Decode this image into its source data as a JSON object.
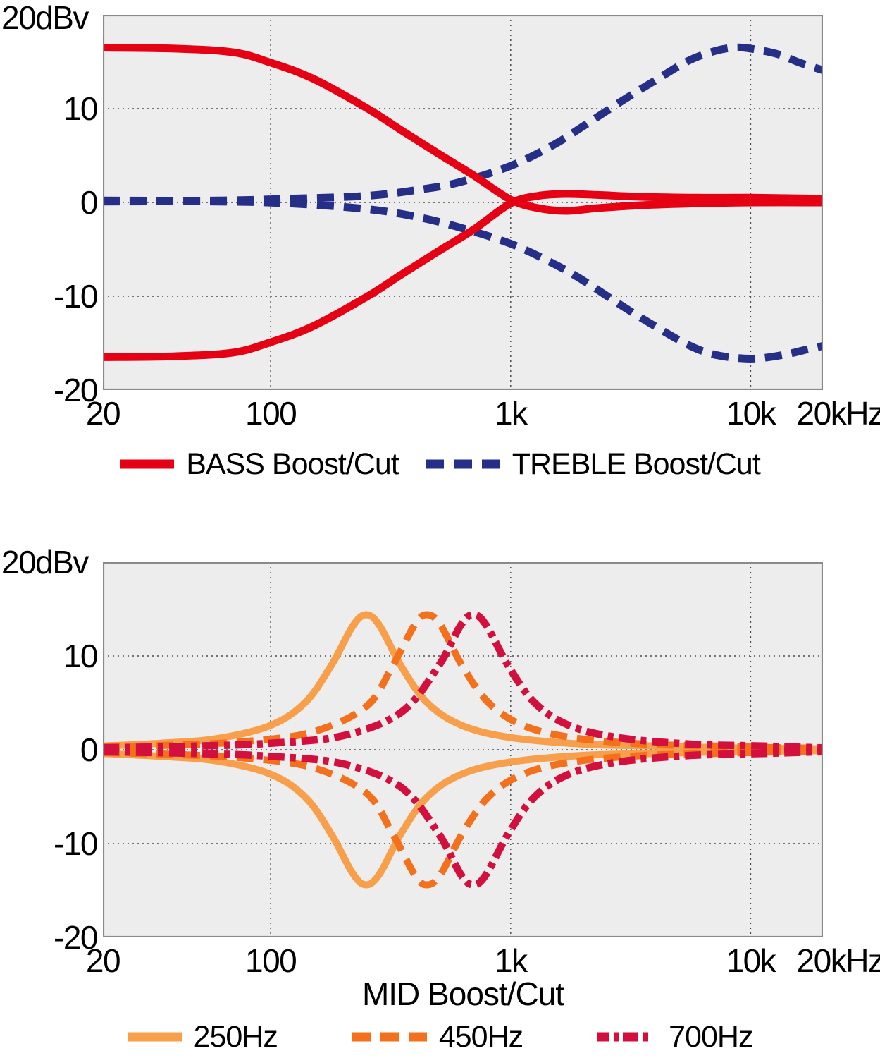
{
  "figure": {
    "background": "#ffffff",
    "text_color": "#000000"
  },
  "chart_data": [
    {
      "type": "line",
      "name": "bass-treble-response",
      "y_unit_label": "20dBv",
      "x_scale": "log",
      "xlim": [
        20,
        20000
      ],
      "ylim": [
        -20,
        20
      ],
      "plot_bg": "#ededed",
      "border_color": "#8a8a8a",
      "grid_color": "#4d4d4d",
      "grid": "dotted",
      "x_grid": [
        100,
        1000,
        10000
      ],
      "y_grid": [
        10,
        0,
        -10
      ],
      "x_ticks": [
        {
          "f": 20,
          "label": "20"
        },
        {
          "f": 100,
          "label": "100"
        },
        {
          "f": 1000,
          "label": "1k"
        },
        {
          "f": 10000,
          "label": "10k"
        },
        {
          "f": 20000,
          "label": "20kHz"
        }
      ],
      "y_ticks": [
        {
          "v": 10,
          "label": "10"
        },
        {
          "v": 0,
          "label": "0"
        },
        {
          "v": -10,
          "label": "-10"
        },
        {
          "v": -20,
          "label": "-20"
        }
      ],
      "legend_position": "bottom",
      "legend": [
        {
          "label": "BASS Boost/Cut",
          "color": "#e60014",
          "swatch_style": "solid"
        },
        {
          "label": "TREBLE Boost/Cut",
          "color": "#262f88",
          "swatch_style": "dashed"
        }
      ],
      "series": [
        {
          "name": "TREBLE Boost",
          "color": "#262f88",
          "style": "dashed",
          "width": 11,
          "points": [
            [
              20,
              0.2
            ],
            [
              60,
              0.2
            ],
            [
              120,
              0.4
            ],
            [
              250,
              0.7
            ],
            [
              400,
              1.3
            ],
            [
              600,
              2.1
            ],
            [
              1000,
              3.9
            ],
            [
              1500,
              6.1
            ],
            [
              2000,
              8.1
            ],
            [
              2900,
              10.8
            ],
            [
              4000,
              13.0
            ],
            [
              5500,
              15.1
            ],
            [
              7000,
              16.1
            ],
            [
              8500,
              16.5
            ],
            [
              10000,
              16.4
            ],
            [
              13000,
              15.8
            ],
            [
              16000,
              14.9
            ],
            [
              20000,
              14.1
            ]
          ]
        },
        {
          "name": "TREBLE Cut",
          "color": "#262f88",
          "style": "dashed",
          "width": 11,
          "points": [
            [
              20,
              0.1
            ],
            [
              60,
              0.1
            ],
            [
              120,
              -0.1
            ],
            [
              250,
              -0.7
            ],
            [
              400,
              -1.5
            ],
            [
              600,
              -2.6
            ],
            [
              1000,
              -4.4
            ],
            [
              1500,
              -6.5
            ],
            [
              2000,
              -8.3
            ],
            [
              2900,
              -11.0
            ],
            [
              4000,
              -13.2
            ],
            [
              5500,
              -15.2
            ],
            [
              7000,
              -16.2
            ],
            [
              9000,
              -16.6
            ],
            [
              11000,
              -16.6
            ],
            [
              14000,
              -16.2
            ],
            [
              17000,
              -15.7
            ],
            [
              20000,
              -15.3
            ]
          ]
        },
        {
          "name": "BASS Boost",
          "color": "#e60014",
          "style": "solid",
          "width": 11,
          "points": [
            [
              20,
              16.5
            ],
            [
              40,
              16.4
            ],
            [
              70,
              16.0
            ],
            [
              100,
              14.9
            ],
            [
              150,
              13.2
            ],
            [
              250,
              10.1
            ],
            [
              350,
              7.7
            ],
            [
              500,
              5.2
            ],
            [
              700,
              2.9
            ],
            [
              1000,
              0.3
            ],
            [
              1300,
              -0.6
            ],
            [
              1700,
              -0.9
            ],
            [
              2300,
              -0.6
            ],
            [
              3500,
              -0.3
            ],
            [
              6000,
              -0.1
            ],
            [
              10000,
              0.0
            ],
            [
              20000,
              0.0
            ]
          ]
        },
        {
          "name": "BASS Cut",
          "color": "#e60014",
          "style": "solid",
          "width": 11,
          "points": [
            [
              20,
              -16.5
            ],
            [
              40,
              -16.4
            ],
            [
              70,
              -16.0
            ],
            [
              100,
              -14.9
            ],
            [
              150,
              -13.2
            ],
            [
              250,
              -10.1
            ],
            [
              350,
              -7.7
            ],
            [
              500,
              -5.2
            ],
            [
              700,
              -2.9
            ],
            [
              1000,
              -0.1
            ],
            [
              1300,
              0.7
            ],
            [
              1700,
              0.9
            ],
            [
              2300,
              0.8
            ],
            [
              3500,
              0.6
            ],
            [
              6000,
              0.5
            ],
            [
              10000,
              0.5
            ],
            [
              20000,
              0.4
            ]
          ]
        }
      ]
    },
    {
      "type": "line",
      "name": "mid-response",
      "y_unit_label": "20dBv",
      "x_axis_title": "MID Boost/Cut",
      "x_scale": "log",
      "xlim": [
        20,
        20000
      ],
      "ylim": [
        -20,
        20
      ],
      "plot_bg": "#ededed",
      "border_color": "#8a8a8a",
      "grid_color": "#4d4d4d",
      "grid": "dotted",
      "x_grid": [
        100,
        1000,
        10000
      ],
      "y_grid": [
        10,
        0,
        -10
      ],
      "x_ticks": [
        {
          "f": 20,
          "label": "20"
        },
        {
          "f": 100,
          "label": "100"
        },
        {
          "f": 1000,
          "label": "1k"
        },
        {
          "f": 10000,
          "label": "10k"
        },
        {
          "f": 20000,
          "label": "20kHz"
        }
      ],
      "y_ticks": [
        {
          "v": 10,
          "label": "10"
        },
        {
          "v": 0,
          "label": "0"
        },
        {
          "v": -10,
          "label": "-10"
        },
        {
          "v": -20,
          "label": "-20"
        }
      ],
      "legend_position": "bottom",
      "legend": [
        {
          "label": "250Hz",
          "color": "#f79f4a",
          "swatch_style": "solid"
        },
        {
          "label": "450Hz",
          "color": "#f3701d",
          "swatch_style": "dashed"
        },
        {
          "label": "700Hz",
          "color": "#d30f3e",
          "swatch_style": "dash-dot"
        }
      ],
      "series": [
        {
          "name": "250Hz Boost",
          "color": "#f79f4a",
          "style": "solid",
          "width": 10,
          "points": [
            [
              20,
              0.4
            ],
            [
              35,
              0.7
            ],
            [
              60,
              1.2
            ],
            [
              100,
              2.6
            ],
            [
              140,
              5.1
            ],
            [
              180,
              9.1
            ],
            [
              220,
              13.2
            ],
            [
              250,
              14.4
            ],
            [
              285,
              13.2
            ],
            [
              350,
              8.9
            ],
            [
              450,
              5.0
            ],
            [
              625,
              2.6
            ],
            [
              1000,
              1.3
            ],
            [
              2000,
              0.6
            ],
            [
              4000,
              0.4
            ],
            [
              8000,
              0.2
            ],
            [
              20000,
              0.1
            ]
          ]
        },
        {
          "name": "250Hz Cut",
          "color": "#f79f4a",
          "style": "solid",
          "width": 10,
          "points": [
            [
              20,
              -0.4
            ],
            [
              35,
              -0.7
            ],
            [
              60,
              -1.2
            ],
            [
              100,
              -2.6
            ],
            [
              140,
              -5.1
            ],
            [
              180,
              -9.1
            ],
            [
              220,
              -13.2
            ],
            [
              250,
              -14.4
            ],
            [
              285,
              -13.2
            ],
            [
              350,
              -8.9
            ],
            [
              450,
              -5.0
            ],
            [
              625,
              -2.6
            ],
            [
              1000,
              -1.3
            ],
            [
              2000,
              -0.6
            ],
            [
              4000,
              -0.4
            ],
            [
              8000,
              -0.2
            ],
            [
              20000,
              -0.1
            ]
          ]
        },
        {
          "name": "450Hz Boost",
          "color": "#f3701d",
          "style": "dashed",
          "width": 10,
          "points": [
            [
              20,
              0.3
            ],
            [
              40,
              0.5
            ],
            [
              80,
              0.9
            ],
            [
              150,
              1.9
            ],
            [
              250,
              4.6
            ],
            [
              320,
              8.8
            ],
            [
              400,
              13.4
            ],
            [
              450,
              14.4
            ],
            [
              510,
              13.3
            ],
            [
              630,
              8.9
            ],
            [
              810,
              5.0
            ],
            [
              1125,
              2.6
            ],
            [
              1800,
              1.3
            ],
            [
              3600,
              0.6
            ],
            [
              7200,
              0.4
            ],
            [
              14000,
              0.2
            ],
            [
              20000,
              0.2
            ]
          ]
        },
        {
          "name": "450Hz Cut",
          "color": "#f3701d",
          "style": "dashed",
          "width": 10,
          "points": [
            [
              20,
              -0.3
            ],
            [
              40,
              -0.5
            ],
            [
              80,
              -0.9
            ],
            [
              150,
              -1.9
            ],
            [
              250,
              -4.6
            ],
            [
              320,
              -8.8
            ],
            [
              400,
              -13.4
            ],
            [
              450,
              -14.4
            ],
            [
              510,
              -13.3
            ],
            [
              630,
              -8.9
            ],
            [
              810,
              -5.0
            ],
            [
              1125,
              -2.6
            ],
            [
              1800,
              -1.3
            ],
            [
              3600,
              -0.6
            ],
            [
              7200,
              -0.4
            ],
            [
              14000,
              -0.2
            ],
            [
              20000,
              -0.2
            ]
          ]
        },
        {
          "name": "700Hz Boost",
          "color": "#d30f3e",
          "style": "dash-dot",
          "width": 10.5,
          "points": [
            [
              20,
              0.2
            ],
            [
              50,
              0.4
            ],
            [
              100,
              0.7
            ],
            [
              200,
              1.5
            ],
            [
              350,
              4.0
            ],
            [
              500,
              8.9
            ],
            [
              620,
              13.3
            ],
            [
              700,
              14.4
            ],
            [
              790,
              13.3
            ],
            [
              980,
              8.9
            ],
            [
              1260,
              5.0
            ],
            [
              1750,
              2.6
            ],
            [
              2800,
              1.3
            ],
            [
              5600,
              0.6
            ],
            [
              11200,
              0.4
            ],
            [
              20000,
              0.2
            ]
          ]
        },
        {
          "name": "700Hz Cut",
          "color": "#d30f3e",
          "style": "dash-dot",
          "width": 10.5,
          "points": [
            [
              20,
              -0.2
            ],
            [
              50,
              -0.4
            ],
            [
              100,
              -0.7
            ],
            [
              200,
              -1.5
            ],
            [
              350,
              -4.0
            ],
            [
              500,
              -8.9
            ],
            [
              620,
              -13.3
            ],
            [
              700,
              -14.4
            ],
            [
              790,
              -13.3
            ],
            [
              980,
              -8.9
            ],
            [
              1260,
              -5.0
            ],
            [
              1750,
              -2.6
            ],
            [
              2800,
              -1.3
            ],
            [
              5600,
              -0.6
            ],
            [
              11200,
              -0.4
            ],
            [
              20000,
              -0.2
            ]
          ]
        }
      ]
    }
  ]
}
